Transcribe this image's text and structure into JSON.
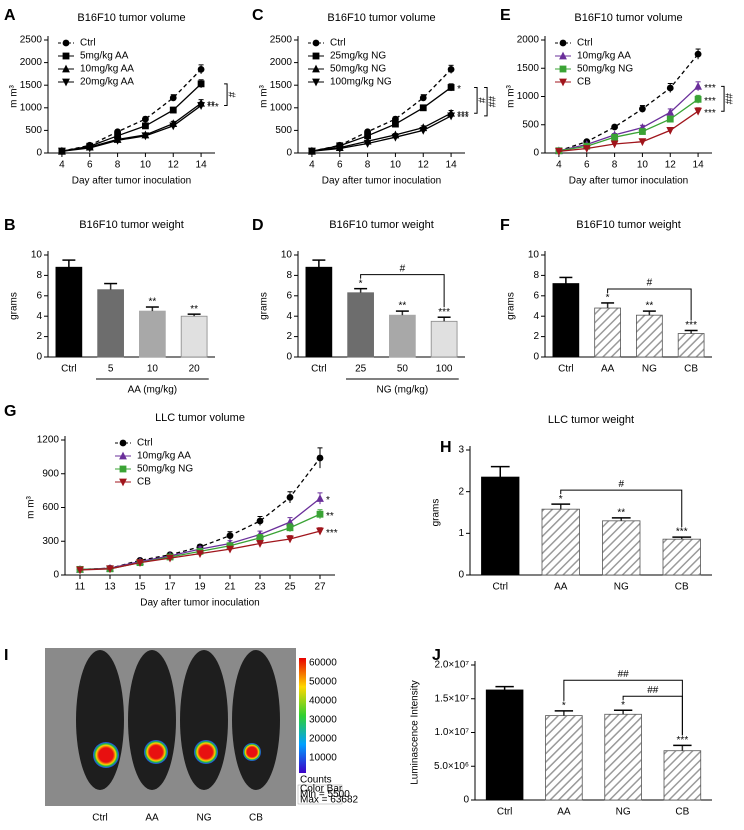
{
  "chart_data": [
    {
      "type": "line",
      "panel": "A",
      "title": "B16F10 tumor volume",
      "xlabel": "Day after tumor inoculation",
      "ylabel": "m m³",
      "x": [
        4,
        6,
        8,
        10,
        12,
        14
      ],
      "xlim": [
        3,
        15
      ],
      "xticks": [
        4,
        6,
        8,
        10,
        12,
        14
      ],
      "ylim": [
        0,
        2500
      ],
      "yticks": [
        0,
        500,
        1000,
        1500,
        2000,
        2500
      ],
      "series": [
        {
          "name": "Ctrl",
          "color": "#000000",
          "marker": "circle",
          "dashed": true,
          "values": [
            40,
            170,
            470,
            750,
            1220,
            1850
          ],
          "errors": [
            10,
            20,
            30,
            50,
            70,
            100
          ]
        },
        {
          "name": "5mg/kg AA",
          "color": "#000000",
          "marker": "square",
          "values": [
            40,
            150,
            380,
            600,
            950,
            1530
          ],
          "errors": [
            10,
            15,
            25,
            40,
            60,
            90
          ]
        },
        {
          "name": "10mg/kg AA",
          "color": "#000000",
          "marker": "triangle",
          "values": [
            40,
            130,
            300,
            400,
            650,
            1100
          ],
          "errors": [
            10,
            15,
            20,
            30,
            50,
            80
          ],
          "significance": "**"
        },
        {
          "name": "20mg/kg AA",
          "color": "#000000",
          "marker": "triangle-down",
          "values": [
            40,
            110,
            280,
            380,
            600,
            1050
          ],
          "errors": [
            10,
            15,
            20,
            30,
            50,
            70
          ],
          "significance": "***"
        }
      ],
      "brackets": [
        {
          "between": [
            "5mg/kg AA",
            "20mg/kg AA"
          ],
          "label": "#"
        }
      ]
    },
    {
      "type": "line",
      "panel": "C",
      "title": "B16F10 tumor volume",
      "xlabel": "Day after tumor inoculation",
      "ylabel": "m m³",
      "x": [
        4,
        6,
        8,
        10,
        12,
        14
      ],
      "xlim": [
        3,
        15
      ],
      "xticks": [
        4,
        6,
        8,
        10,
        12,
        14
      ],
      "ylim": [
        0,
        2500
      ],
      "yticks": [
        0,
        500,
        1000,
        1500,
        2000,
        2500
      ],
      "series": [
        {
          "name": "Ctrl",
          "color": "#000000",
          "marker": "circle",
          "dashed": true,
          "values": [
            40,
            170,
            470,
            750,
            1220,
            1850
          ],
          "errors": [
            10,
            20,
            30,
            50,
            70,
            90
          ]
        },
        {
          "name": "25mg/kg NG",
          "color": "#000000",
          "marker": "square",
          "values": [
            40,
            160,
            380,
            640,
            1000,
            1450
          ],
          "errors": [
            10,
            15,
            25,
            40,
            60,
            80
          ],
          "significance": "*"
        },
        {
          "name": "50mg/kg NG",
          "color": "#000000",
          "marker": "triangle",
          "values": [
            40,
            120,
            260,
            400,
            560,
            880
          ],
          "errors": [
            10,
            15,
            20,
            30,
            40,
            60
          ],
          "significance": "***"
        },
        {
          "name": "100mg/kg NG",
          "color": "#000000",
          "marker": "triangle-down",
          "values": [
            40,
            100,
            210,
            350,
            500,
            820
          ],
          "errors": [
            10,
            15,
            20,
            30,
            40,
            60
          ],
          "significance": "***"
        }
      ],
      "brackets": [
        {
          "between": [
            "25mg/kg NG",
            "50mg/kg NG"
          ],
          "label": "#"
        },
        {
          "between": [
            "25mg/kg NG",
            "100mg/kg NG"
          ],
          "label": "##"
        }
      ]
    },
    {
      "type": "line",
      "panel": "E",
      "title": "B16F10 tumor volume",
      "xlabel": "Day after tumor inoculation",
      "ylabel": "m m³",
      "x": [
        4,
        6,
        8,
        10,
        12,
        14
      ],
      "xlim": [
        3,
        15
      ],
      "xticks": [
        4,
        6,
        8,
        10,
        12,
        14
      ],
      "ylim": [
        0,
        2000
      ],
      "yticks": [
        0,
        500,
        1000,
        1500,
        2000
      ],
      "series": [
        {
          "name": "Ctrl",
          "color": "#000000",
          "marker": "circle",
          "dashed": true,
          "values": [
            40,
            200,
            460,
            780,
            1150,
            1750
          ],
          "errors": [
            10,
            20,
            30,
            60,
            80,
            90
          ]
        },
        {
          "name": "10mg/kg AA",
          "color": "#6a2f9a",
          "marker": "triangle",
          "values": [
            40,
            150,
            320,
            450,
            720,
            1180
          ],
          "errors": [
            10,
            15,
            25,
            40,
            60,
            80
          ],
          "significance": "***"
        },
        {
          "name": "50mg/kg NG",
          "color": "#3aa335",
          "marker": "square",
          "values": [
            40,
            120,
            280,
            380,
            600,
            950
          ],
          "errors": [
            10,
            15,
            20,
            30,
            50,
            70
          ],
          "significance": "***"
        },
        {
          "name": "CB",
          "color": "#a0151c",
          "marker": "triangle-down",
          "values": [
            30,
            80,
            160,
            200,
            400,
            740
          ],
          "errors": [
            10,
            10,
            15,
            20,
            40,
            60
          ],
          "significance": "***"
        }
      ],
      "brackets": [
        {
          "between": [
            "10mg/kg AA",
            "CB"
          ],
          "label": "##"
        }
      ]
    },
    {
      "type": "bar",
      "panel": "B",
      "title": "B16F10 tumor weight",
      "ylabel": "grams",
      "categories": [
        "Ctrl",
        "5",
        "10",
        "20"
      ],
      "values": [
        8.8,
        6.6,
        4.5,
        4.0
      ],
      "errors": [
        0.7,
        0.6,
        0.4,
        0.2
      ],
      "colors": [
        "#000000",
        "#6d6d6d",
        "#a8a8a8",
        "#e0e0e0"
      ],
      "hatched": [
        false,
        false,
        false,
        false
      ],
      "significance": [
        null,
        null,
        "**",
        "**"
      ],
      "group_label": "AA (mg/kg)",
      "ylim": [
        0,
        10
      ],
      "yticks": [
        0,
        2,
        4,
        6,
        8,
        10
      ]
    },
    {
      "type": "bar",
      "panel": "D",
      "title": "B16F10 tumor weight",
      "ylabel": "grams",
      "categories": [
        "Ctrl",
        "25",
        "50",
        "100"
      ],
      "values": [
        8.8,
        6.3,
        4.1,
        3.5
      ],
      "errors": [
        0.7,
        0.4,
        0.4,
        0.4
      ],
      "colors": [
        "#000000",
        "#6d6d6d",
        "#a8a8a8",
        "#e0e0e0"
      ],
      "hatched": [
        false,
        false,
        false,
        false
      ],
      "significance": [
        null,
        "*",
        "**",
        "***"
      ],
      "group_label": "NG (mg/kg)",
      "ylim": [
        0,
        10
      ],
      "yticks": [
        0,
        2,
        4,
        6,
        8,
        10
      ],
      "brackets": [
        {
          "between": [
            "25",
            "100"
          ],
          "label": "#"
        }
      ]
    },
    {
      "type": "bar",
      "panel": "F",
      "title": "B16F10 tumor weight",
      "ylabel": "grams",
      "categories": [
        "Ctrl",
        "AA",
        "NG",
        "CB"
      ],
      "values": [
        7.2,
        4.8,
        4.1,
        2.3
      ],
      "errors": [
        0.6,
        0.5,
        0.4,
        0.3
      ],
      "colors": [
        "#000000",
        "#9a9a9a",
        "#9a9a9a",
        "#9a9a9a"
      ],
      "hatched": [
        false,
        true,
        true,
        true
      ],
      "significance": [
        null,
        "*",
        "**",
        "***"
      ],
      "ylim": [
        0,
        10
      ],
      "yticks": [
        0,
        2,
        4,
        6,
        8,
        10
      ],
      "brackets": [
        {
          "between": [
            "AA",
            "CB"
          ],
          "label": "#"
        }
      ]
    },
    {
      "type": "line",
      "panel": "G",
      "title": "LLC tumor volume",
      "xlabel": "Day after tumor inoculation",
      "ylabel": "m m³",
      "x": [
        11,
        13,
        15,
        17,
        19,
        21,
        23,
        25,
        27
      ],
      "xlim": [
        10,
        28
      ],
      "xticks": [
        11,
        13,
        15,
        17,
        19,
        21,
        23,
        25,
        27
      ],
      "ylim": [
        0,
        1200
      ],
      "yticks": [
        0,
        300,
        600,
        900,
        1200
      ],
      "series": [
        {
          "name": "Ctrl",
          "color": "#000000",
          "marker": "circle",
          "dashed": true,
          "values": [
            50,
            60,
            130,
            180,
            250,
            350,
            480,
            690,
            1040
          ],
          "errors": [
            5,
            5,
            10,
            15,
            20,
            35,
            40,
            50,
            90
          ]
        },
        {
          "name": "10mg/kg AA",
          "color": "#6a2f9a",
          "marker": "triangle",
          "values": [
            50,
            60,
            120,
            170,
            230,
            280,
            360,
            470,
            680
          ],
          "errors": [
            5,
            5,
            10,
            15,
            20,
            25,
            30,
            40,
            50
          ],
          "significance": "*"
        },
        {
          "name": "50mg/kg NG",
          "color": "#3aa335",
          "marker": "square",
          "values": [
            50,
            55,
            110,
            160,
            210,
            260,
            330,
            420,
            540
          ],
          "errors": [
            5,
            5,
            10,
            15,
            20,
            25,
            30,
            35,
            40
          ],
          "significance": "**"
        },
        {
          "name": "CB",
          "color": "#a0151c",
          "marker": "triangle-down",
          "values": [
            45,
            55,
            110,
            150,
            190,
            230,
            280,
            320,
            390
          ],
          "errors": [
            5,
            5,
            10,
            10,
            15,
            20,
            25,
            30,
            30
          ],
          "significance": "***"
        }
      ]
    },
    {
      "type": "bar",
      "panel": "H",
      "title": "LLC tumor weight",
      "ylabel": "grams",
      "categories": [
        "Ctrl",
        "AA",
        "NG",
        "CB"
      ],
      "values": [
        2.35,
        1.58,
        1.3,
        0.86
      ],
      "errors": [
        0.25,
        0.12,
        0.07,
        0.05
      ],
      "colors": [
        "#000000",
        "#9a9a9a",
        "#9a9a9a",
        "#9a9a9a"
      ],
      "hatched": [
        false,
        true,
        true,
        true
      ],
      "significance": [
        null,
        "*",
        "**",
        "***"
      ],
      "ylim": [
        0,
        3
      ],
      "yticks": [
        0,
        1,
        2,
        3
      ],
      "brackets": [
        {
          "between": [
            "AA",
            "CB"
          ],
          "label": "#"
        }
      ]
    },
    {
      "type": "bar",
      "panel": "J",
      "ylabel": "Luminascence Intensity",
      "categories": [
        "Ctrl",
        "AA",
        "NG",
        "CB"
      ],
      "values": [
        16300000,
        12500000,
        12700000,
        7300000
      ],
      "errors": [
        500000,
        700000,
        600000,
        800000
      ],
      "colors": [
        "#000000",
        "#9a9a9a",
        "#9a9a9a",
        "#9a9a9a"
      ],
      "hatched": [
        false,
        true,
        true,
        true
      ],
      "significance": [
        null,
        "*",
        "*",
        "***"
      ],
      "ylim": [
        0,
        20000000
      ],
      "yticks": [
        0,
        {
          "value": 5000000,
          "label": "5.0×10⁶"
        },
        {
          "value": 10000000,
          "label": "1.0×10⁷"
        },
        {
          "value": 15000000,
          "label": "1.5×10⁷"
        },
        {
          "value": 20000000,
          "label": "2.0×10⁷"
        }
      ],
      "brackets": [
        {
          "between": [
            "AA",
            "CB"
          ],
          "label": "##"
        },
        {
          "between": [
            "NG",
            "CB"
          ],
          "label": "##"
        }
      ]
    }
  ],
  "image_panel": {
    "panel": "I",
    "labels": [
      "Ctrl",
      "AA",
      "NG",
      "CB"
    ],
    "colorbar_ticks": [
      60000,
      50000,
      40000,
      30000,
      20000,
      10000
    ],
    "colorbar_unit": "Counts",
    "colorbar_note": [
      "Color Bar",
      "Min = 5500",
      "Max = 63682"
    ]
  }
}
